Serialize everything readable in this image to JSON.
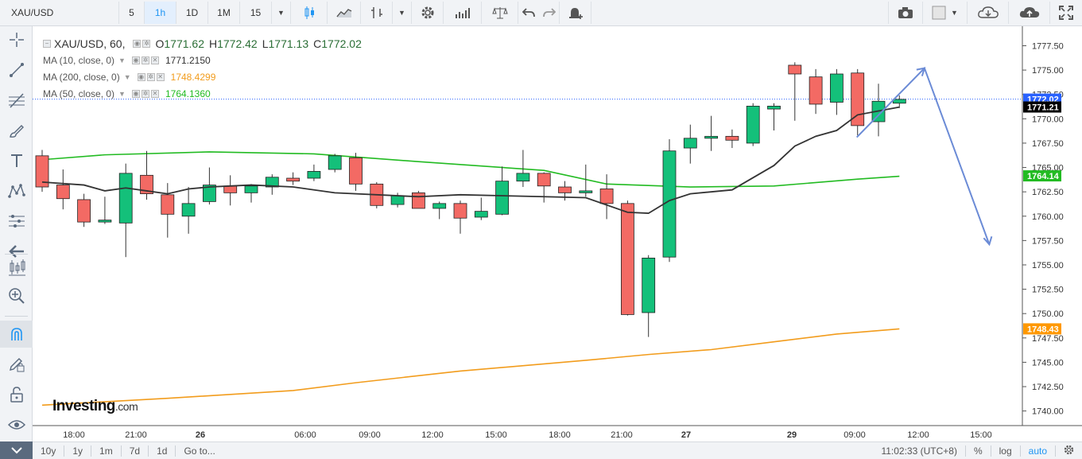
{
  "toolbar": {
    "symbol": "XAU/USD",
    "intervals": [
      "5",
      "1h",
      "1D",
      "1M",
      "15"
    ],
    "active_interval": "1h"
  },
  "legend": {
    "title": "XAU/USD, 60,",
    "open_label": "O",
    "open": "1771.62",
    "high_label": "H",
    "high": "1772.42",
    "low_label": "L",
    "low": "1771.13",
    "close_label": "C",
    "close": "1772.02",
    "ma10": {
      "label": "MA (10, close, 0)",
      "value": "1771.2150",
      "color": "#333333"
    },
    "ma200": {
      "label": "MA (200, close, 0)",
      "value": "1748.4299",
      "color": "#f29c1c"
    },
    "ma50": {
      "label": "MA (50, close, 0)",
      "value": "1764.1360",
      "color": "#22bb22"
    }
  },
  "price_axis": {
    "ticks": [
      "1777.50",
      "1775.00",
      "1772.50",
      "1770.00",
      "1767.50",
      "1765.00",
      "1762.50",
      "1760.00",
      "1757.50",
      "1755.00",
      "1752.50",
      "1750.00",
      "1747.50",
      "1745.00",
      "1742.50",
      "1740.00"
    ],
    "tags": [
      {
        "value": 1772.02,
        "label": "1772.02",
        "color": "#2962ff"
      },
      {
        "value": 1771.21,
        "label": "1771.21",
        "color": "#000000"
      },
      {
        "value": 1764.14,
        "label": "1764.14",
        "color": "#22bb22"
      },
      {
        "value": 1748.43,
        "label": "1748.43",
        "color": "#ff9800"
      }
    ]
  },
  "time_axis": {
    "ticks": [
      {
        "label": "18:00",
        "bold": false
      },
      {
        "label": "21:00",
        "bold": false
      },
      {
        "label": "26",
        "bold": true
      },
      {
        "label": "06:00",
        "bold": false
      },
      {
        "label": "09:00",
        "bold": false
      },
      {
        "label": "12:00",
        "bold": false
      },
      {
        "label": "15:00",
        "bold": false
      },
      {
        "label": "18:00",
        "bold": false
      },
      {
        "label": "21:00",
        "bold": false
      },
      {
        "label": "27",
        "bold": true
      },
      {
        "label": "29",
        "bold": true
      },
      {
        "label": "09:00",
        "bold": false
      },
      {
        "label": "12:00",
        "bold": false
      },
      {
        "label": "15:00",
        "bold": false
      }
    ]
  },
  "chart_data": {
    "type": "candlestick",
    "ylim": [
      1738.5,
      1779.5
    ],
    "candles": [
      {
        "o": 1766.2,
        "h": 1766.8,
        "l": 1762.5,
        "c": 1763.0
      },
      {
        "o": 1763.2,
        "h": 1764.8,
        "l": 1760.7,
        "c": 1761.8
      },
      {
        "o": 1761.7,
        "h": 1762.3,
        "l": 1758.9,
        "c": 1759.4
      },
      {
        "o": 1759.4,
        "h": 1762.0,
        "l": 1759.2,
        "c": 1759.6
      },
      {
        "o": 1759.3,
        "h": 1765.4,
        "l": 1755.8,
        "c": 1764.4
      },
      {
        "o": 1764.2,
        "h": 1766.7,
        "l": 1761.7,
        "c": 1762.3
      },
      {
        "o": 1762.2,
        "h": 1763.4,
        "l": 1757.8,
        "c": 1760.2
      },
      {
        "o": 1760.0,
        "h": 1763.0,
        "l": 1758.2,
        "c": 1761.3
      },
      {
        "o": 1761.5,
        "h": 1765.0,
        "l": 1761.2,
        "c": 1763.2
      },
      {
        "o": 1763.1,
        "h": 1764.2,
        "l": 1761.1,
        "c": 1762.4
      },
      {
        "o": 1762.4,
        "h": 1763.3,
        "l": 1761.4,
        "c": 1763.1
      },
      {
        "o": 1763.0,
        "h": 1764.3,
        "l": 1762.2,
        "c": 1764.0
      },
      {
        "o": 1763.9,
        "h": 1764.5,
        "l": 1763.2,
        "c": 1763.6
      },
      {
        "o": 1763.9,
        "h": 1765.3,
        "l": 1763.6,
        "c": 1764.6
      },
      {
        "o": 1764.8,
        "h": 1766.4,
        "l": 1764.5,
        "c": 1766.2
      },
      {
        "o": 1766.0,
        "h": 1766.5,
        "l": 1762.6,
        "c": 1763.3
      },
      {
        "o": 1763.3,
        "h": 1763.5,
        "l": 1760.8,
        "c": 1761.1
      },
      {
        "o": 1761.2,
        "h": 1762.4,
        "l": 1760.9,
        "c": 1762.1
      },
      {
        "o": 1762.4,
        "h": 1762.6,
        "l": 1760.8,
        "c": 1760.8
      },
      {
        "o": 1760.8,
        "h": 1761.5,
        "l": 1759.7,
        "c": 1761.3
      },
      {
        "o": 1761.3,
        "h": 1761.6,
        "l": 1758.2,
        "c": 1759.8
      },
      {
        "o": 1759.9,
        "h": 1761.9,
        "l": 1759.6,
        "c": 1760.5
      },
      {
        "o": 1760.2,
        "h": 1765.1,
        "l": 1760.1,
        "c": 1763.6
      },
      {
        "o": 1763.6,
        "h": 1766.8,
        "l": 1763.0,
        "c": 1764.4
      },
      {
        "o": 1764.4,
        "h": 1764.5,
        "l": 1761.4,
        "c": 1763.1
      },
      {
        "o": 1763.0,
        "h": 1763.6,
        "l": 1761.6,
        "c": 1762.4
      },
      {
        "o": 1762.4,
        "h": 1765.3,
        "l": 1762.0,
        "c": 1762.6
      },
      {
        "o": 1762.8,
        "h": 1764.3,
        "l": 1759.7,
        "c": 1761.3
      },
      {
        "o": 1761.3,
        "h": 1761.6,
        "l": 1749.8,
        "c": 1749.9
      },
      {
        "o": 1750.1,
        "h": 1756.0,
        "l": 1747.6,
        "c": 1755.7
      },
      {
        "o": 1755.8,
        "h": 1767.9,
        "l": 1755.3,
        "c": 1766.7
      },
      {
        "o": 1767.0,
        "h": 1769.4,
        "l": 1765.4,
        "c": 1768.0
      },
      {
        "o": 1768.0,
        "h": 1770.3,
        "l": 1766.7,
        "c": 1768.2
      },
      {
        "o": 1768.2,
        "h": 1768.9,
        "l": 1767.0,
        "c": 1767.8
      },
      {
        "o": 1767.5,
        "h": 1771.6,
        "l": 1767.2,
        "c": 1771.3
      },
      {
        "o": 1771.0,
        "h": 1771.6,
        "l": 1768.8,
        "c": 1771.3
      },
      {
        "o": 1775.5,
        "h": 1775.8,
        "l": 1769.8,
        "c": 1774.6
      },
      {
        "o": 1774.3,
        "h": 1775.1,
        "l": 1770.5,
        "c": 1771.5
      },
      {
        "o": 1771.7,
        "h": 1775.1,
        "l": 1770.4,
        "c": 1774.6
      },
      {
        "o": 1774.7,
        "h": 1775.1,
        "l": 1768.3,
        "c": 1769.3
      },
      {
        "o": 1769.7,
        "h": 1773.6,
        "l": 1768.2,
        "c": 1771.8
      },
      {
        "o": 1771.6,
        "h": 1772.4,
        "l": 1771.1,
        "c": 1772.0
      }
    ],
    "ma10": [
      1763.5,
      1763.2,
      1762.6,
      1762.9,
      1762.6,
      1762.3,
      1762.8,
      1763.0,
      1763.1,
      1763.2,
      1763.0,
      1762.4,
      1762.0,
      1762.2,
      1762.0,
      1761.9,
      1760.4,
      1760.3,
      1761.6,
      1762.3,
      1762.7,
      1765.2,
      1767.2,
      1768.2,
      1768.8,
      1770.4,
      1770.8,
      1771.2
    ],
    "ma10_x": [
      0,
      2,
      3,
      4,
      5,
      6,
      7,
      8,
      9,
      10,
      12,
      14,
      18,
      20,
      24,
      26,
      28,
      29,
      30,
      31,
      33,
      35,
      36,
      37,
      38,
      39,
      40,
      41
    ],
    "ma50": [
      1765.8,
      1766.3,
      1766.6,
      1766.4,
      1765.6,
      1764.7,
      1763.3,
      1763.0,
      1763.1,
      1763.8,
      1764.1
    ],
    "ma50_x": [
      0,
      3,
      8,
      13,
      18,
      24,
      27,
      31,
      35,
      39,
      41
    ],
    "ma200": [
      1740.6,
      1741.3,
      1742.1,
      1742.9,
      1744.1,
      1745.2,
      1745.8,
      1746.3,
      1747.1,
      1747.9,
      1748.43
    ],
    "ma200_x": [
      0,
      6,
      12,
      15,
      20,
      26,
      29,
      32,
      35,
      38,
      41
    ]
  },
  "watermark": {
    "brand": "Investing",
    "suffix": ".com"
  },
  "bottombar": {
    "ranges": [
      "10y",
      "1y",
      "1m",
      "7d",
      "1d"
    ],
    "goto": "Go to...",
    "time": "11:02:33 (UTC+8)",
    "percent": "%",
    "log": "log",
    "auto": "auto"
  }
}
